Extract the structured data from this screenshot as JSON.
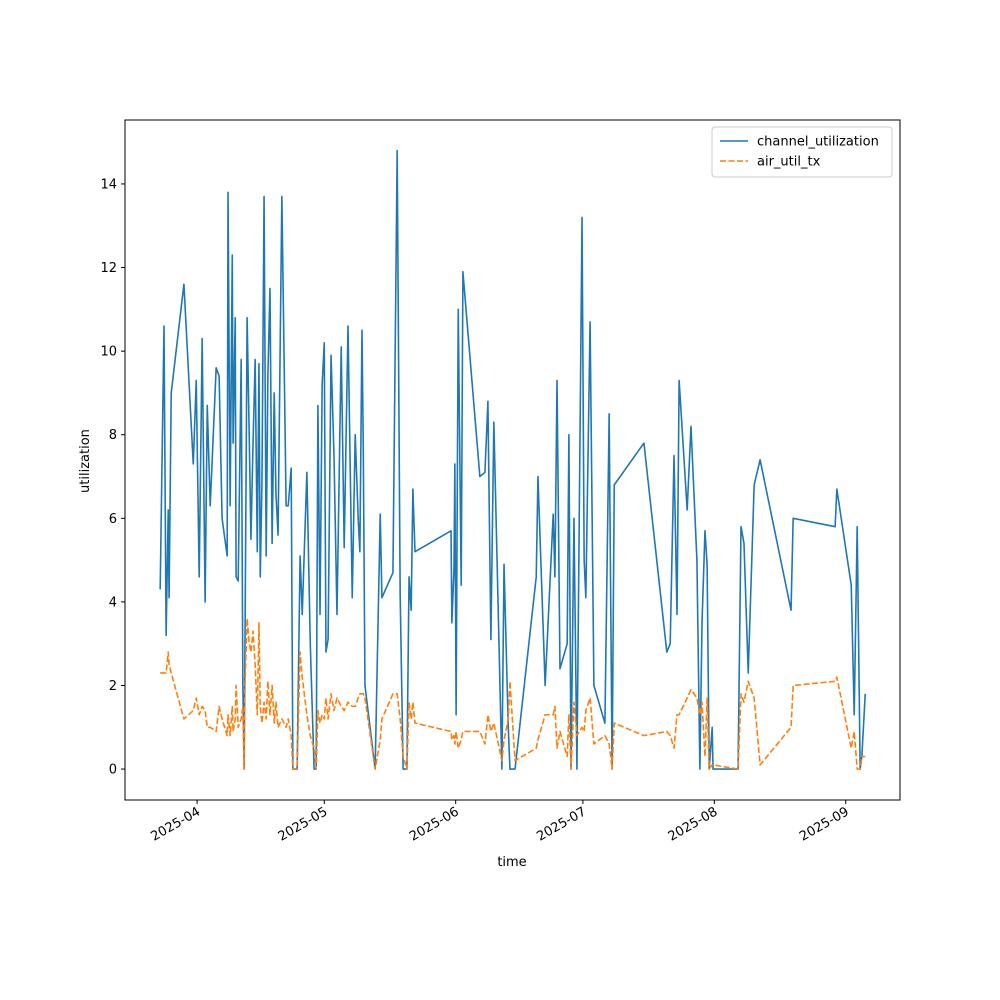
{
  "chart_data": {
    "type": "line",
    "xlabel": "time",
    "ylabel": "utilization",
    "legend": "upper right",
    "xlim": [
      20162,
      20344.8
    ],
    "ylim": [
      -0.74,
      15.53
    ],
    "xticks": [
      {
        "value": 20179,
        "label": "2025-04"
      },
      {
        "value": 20209,
        "label": "2025-05"
      },
      {
        "value": 20240,
        "label": "2025-06"
      },
      {
        "value": 20270,
        "label": "2025-07"
      },
      {
        "value": 20301,
        "label": "2025-08"
      },
      {
        "value": 20332,
        "label": "2025-09"
      }
    ],
    "yticks": [
      0,
      2,
      4,
      6,
      8,
      10,
      12,
      14
    ],
    "x": [
      20170.3,
      20171.2,
      20171.7,
      20172.2,
      20172.4,
      20172.9,
      20175.9,
      20178.1,
      20178.8,
      20179.5,
      20180.2,
      20180.9,
      20181.4,
      20182.1,
      20183.5,
      20184.2,
      20184.9,
      20186.1,
      20186.3,
      20186.8,
      20187.3,
      20187.5,
      20188.0,
      20188.2,
      20188.7,
      20189.4,
      20189.8,
      20190.1,
      20190.3,
      20190.8,
      20191.3,
      20191.7,
      20192.2,
      20192.7,
      20193.2,
      20193.6,
      20193.9,
      20194.3,
      20194.8,
      20195.3,
      20195.7,
      20196.2,
      20196.7,
      20197.2,
      20197.6,
      20198.1,
      20199.0,
      20200.0,
      20200.5,
      20201.2,
      20201.6,
      20202.6,
      20203.3,
      20203.8,
      20204.9,
      20205.7,
      20206.6,
      20207.1,
      20207.5,
      20208.0,
      20208.5,
      20209.0,
      20209.4,
      20209.9,
      20210.6,
      20211.3,
      20212.0,
      20213.0,
      20213.7,
      20214.6,
      20215.6,
      20216.3,
      20217.0,
      20217.4,
      20217.9,
      20218.2,
      20218.6,
      20221.0,
      20222.2,
      20222.6,
      20225.2,
      20226.2,
      20226.9,
      20227.6,
      20228.5,
      20229.0,
      20229.5,
      20229.9,
      20230.4,
      20238.9,
      20239.1,
      20239.6,
      20239.8,
      20240.1,
      20240.6,
      20241.3,
      20241.7,
      20245.7,
      20246.9,
      20247.6,
      20248.3,
      20249.0,
      20250.9,
      20251.4,
      20252.4,
      20252.8,
      20254.0,
      20259.0,
      20259.4,
      20261.1,
      20263.0,
      20263.4,
      20263.9,
      20264.6,
      20266.3,
      20266.7,
      20267.2,
      20267.9,
      20268.6,
      20269.8,
      20270.3,
      20270.7,
      20271.7,
      20272.6,
      20275.2,
      20276.2,
      20276.9,
      20277.4,
      20284.4,
      20289.8,
      20290.6,
      20291.5,
      20292.2,
      20292.7,
      20294.6,
      20295.5,
      20296.9,
      20297.6,
      20298.1,
      20298.8,
      20299.3,
      20299.8,
      20300.5,
      20300.7,
      20306.6,
      20307.3,
      20308.0,
      20309.0,
      20310.4,
      20311.8,
      20319.1,
      20319.6,
      20329.5,
      20329.9,
      20333.3,
      20334.0,
      20334.7,
      20335.4,
      20335.8,
      20336.6
    ],
    "series": [
      {
        "name": "channel_utilization",
        "color": "#1f77b4",
        "linestyle": "solid",
        "values": [
          4.3,
          10.6,
          3.2,
          6.2,
          4.1,
          9.0,
          11.6,
          7.3,
          9.3,
          4.6,
          10.3,
          4.0,
          8.7,
          6.3,
          9.6,
          9.4,
          6.0,
          5.1,
          13.8,
          6.3,
          12.3,
          7.8,
          10.8,
          4.6,
          4.5,
          9.8,
          2.0,
          0.0,
          3.0,
          10.8,
          8.0,
          5.5,
          7.8,
          9.8,
          5.2,
          9.7,
          4.6,
          6.8,
          13.7,
          5.1,
          9.4,
          11.5,
          5.4,
          9.0,
          6.6,
          5.6,
          13.7,
          6.3,
          6.3,
          7.2,
          0.0,
          0.0,
          5.1,
          3.7,
          7.1,
          3.0,
          0.0,
          0.0,
          8.7,
          3.7,
          9.2,
          10.2,
          2.8,
          3.1,
          9.9,
          7.5,
          3.7,
          10.1,
          5.3,
          10.6,
          4.1,
          8.0,
          6.0,
          5.2,
          10.5,
          7.7,
          2.0,
          0.0,
          6.1,
          4.1,
          4.7,
          14.8,
          4.2,
          0.0,
          0.0,
          4.6,
          3.8,
          6.7,
          5.2,
          5.7,
          3.5,
          4.8,
          7.3,
          1.3,
          11.0,
          4.4,
          11.9,
          7.0,
          7.1,
          8.8,
          3.1,
          8.3,
          0.0,
          4.9,
          1.0,
          0.0,
          0.0,
          4.6,
          7.0,
          2.0,
          6.1,
          4.6,
          9.3,
          2.4,
          3.0,
          8.0,
          0.0,
          6.0,
          0.0,
          13.2,
          5.0,
          4.1,
          10.7,
          2.0,
          1.1,
          8.5,
          0.0,
          6.8,
          7.8,
          2.8,
          3.0,
          7.5,
          3.7,
          9.3,
          6.2,
          8.2,
          5.0,
          0.0,
          3.5,
          5.7,
          4.9,
          0.0,
          1.0,
          0.0,
          0.0,
          5.8,
          5.4,
          2.3,
          6.8,
          7.4,
          3.8,
          6.0,
          5.8,
          6.7,
          4.4,
          1.3,
          5.8,
          0.0,
          0.3,
          1.8
        ]
      },
      {
        "name": "air_util_tx",
        "color": "#ff7f0e",
        "linestyle": "dashed",
        "values": [
          2.3,
          2.3,
          2.3,
          2.8,
          2.5,
          2.3,
          1.2,
          1.4,
          1.7,
          1.3,
          1.5,
          1.4,
          1.0,
          1.0,
          0.9,
          1.5,
          1.2,
          0.8,
          1.3,
          0.8,
          1.5,
          0.9,
          1.2,
          2.0,
          1.0,
          1.2,
          1.5,
          0.0,
          2.0,
          3.6,
          3.0,
          2.8,
          3.3,
          2.5,
          1.3,
          3.5,
          1.5,
          1.1,
          1.6,
          1.2,
          2.1,
          1.3,
          2.0,
          1.1,
          1.6,
          1.0,
          1.2,
          1.0,
          1.2,
          0.8,
          0.0,
          0.0,
          2.8,
          2.2,
          1.3,
          0.8,
          0.5,
          0.0,
          1.4,
          1.1,
          1.3,
          1.2,
          1.7,
          1.2,
          1.8,
          1.4,
          1.7,
          1.5,
          1.4,
          1.6,
          1.5,
          1.5,
          1.7,
          1.8,
          1.8,
          1.8,
          1.7,
          0.0,
          0.7,
          1.2,
          1.8,
          1.8,
          1.2,
          0.3,
          0.0,
          1.6,
          1.2,
          1.6,
          1.1,
          0.9,
          0.7,
          0.8,
          0.6,
          0.9,
          0.5,
          0.7,
          0.9,
          0.9,
          0.6,
          1.3,
          0.9,
          1.1,
          0.2,
          0.7,
          1.2,
          2.1,
          0.2,
          0.5,
          0.7,
          1.3,
          1.3,
          1.5,
          0.5,
          0.9,
          0.3,
          1.3,
          0.0,
          1.6,
          0.8,
          1.0,
          0.9,
          1.4,
          1.7,
          0.6,
          0.8,
          0.6,
          0.0,
          1.1,
          0.8,
          0.9,
          0.8,
          0.5,
          1.3,
          1.3,
          1.7,
          1.9,
          1.7,
          1.3,
          1.6,
          0.3,
          1.7,
          0.0,
          0.1,
          0.1,
          0.0,
          1.8,
          1.6,
          2.1,
          1.7,
          0.1,
          1.0,
          2.0,
          2.1,
          2.2,
          0.5,
          0.9,
          0.0,
          0.0,
          0.3,
          0.3
        ]
      }
    ]
  }
}
